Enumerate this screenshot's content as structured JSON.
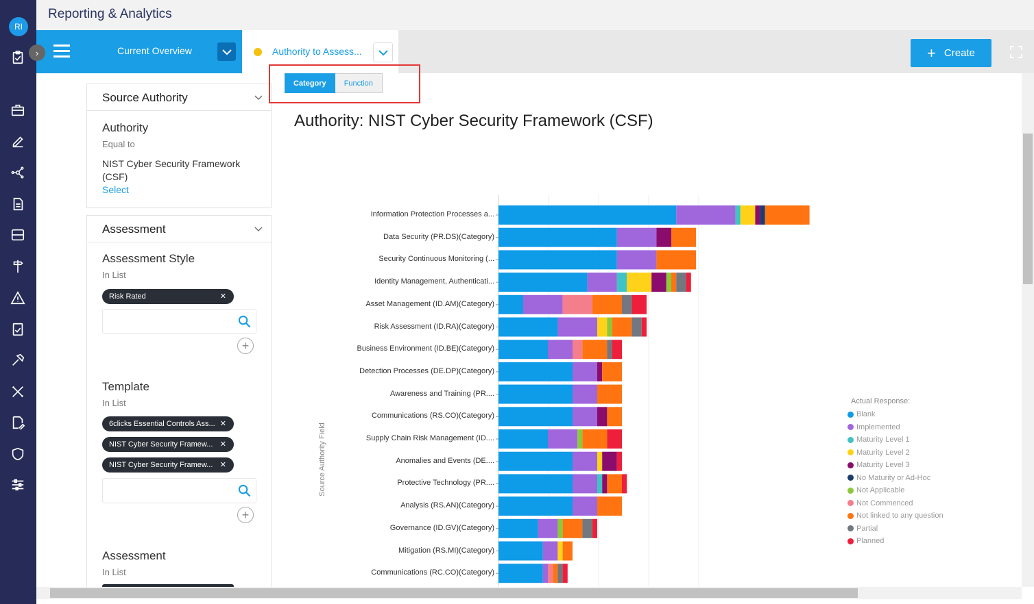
{
  "app": {
    "title": "Reporting & Analytics",
    "user_initials": "RI"
  },
  "tabs": {
    "active_label": "Current Overview",
    "second_label": "Authority to Assess..."
  },
  "toolbar": {
    "create_label": "Create"
  },
  "filters": {
    "source_authority": {
      "header": "Source Authority",
      "field": "Authority",
      "operator": "Equal to",
      "value": "NIST Cyber Security Framework (CSF)",
      "select_link": "Select"
    },
    "assessment_panel": {
      "header": "Assessment",
      "style": {
        "title": "Assessment Style",
        "operator": "In List",
        "chips": [
          "Risk Rated"
        ]
      },
      "template": {
        "title": "Template",
        "operator": "In List",
        "chips": [
          "6clicks Essential Controls Ass...",
          "NIST Cyber Security Framew...",
          "NIST Cyber Security Framew..."
        ]
      },
      "assessment": {
        "title": "Assessment",
        "operator": "In List"
      }
    }
  },
  "view_toggle": {
    "category": "Category",
    "function": "Function",
    "selected": "Category"
  },
  "chart_data": {
    "type": "bar",
    "orientation": "horizontal",
    "stacked": true,
    "title": "Authority: NIST Cyber Security Framework (CSF)",
    "ylabel": "Source Authority Field",
    "legend_title": "Actual Response:",
    "legend_position": "right",
    "categories": [
      "Information Protection Processes a...",
      "Data Security (PR.DS)(Category)",
      "Security Continuous Monitoring (...",
      "Identity Management, Authenticati...",
      "Asset Management (ID.AM)(Category)",
      "Risk Assessment (ID.RA)(Category)",
      "Business Environment (ID.BE)(Category)",
      "Detection Processes (DE.DP)(Category)",
      "Awareness and Training (PR....",
      "Communications (RS.CO)(Category)",
      "Supply Chain Risk Management (ID....",
      "Anomalies and Events (DE....",
      "Protective Technology (PR....",
      "Analysis (RS.AN)(Category)",
      "Governance (ID.GV)(Category)",
      "Mitigation (RS.MI)(Category)",
      "Communications (RC.CO)(Category)"
    ],
    "series": [
      {
        "name": "Blank",
        "color": "#0e9be8",
        "values": [
          36,
          24,
          24,
          18,
          5,
          12,
          10,
          15,
          15,
          15,
          10,
          15,
          15,
          15,
          8,
          9,
          9
        ]
      },
      {
        "name": "Implemented",
        "color": "#a066dc",
        "values": [
          12,
          8,
          8,
          6,
          8,
          8,
          5,
          5,
          5,
          5,
          6,
          5,
          5,
          5,
          4,
          3,
          1
        ]
      },
      {
        "name": "Maturity Level 1",
        "color": "#3fc3c4",
        "values": [
          1,
          0,
          0,
          2,
          0,
          0,
          0,
          0,
          0,
          0,
          0,
          0,
          1,
          0,
          0,
          0,
          0
        ]
      },
      {
        "name": "Maturity Level 2",
        "color": "#ffd21a",
        "values": [
          3,
          0,
          0,
          5,
          0,
          2,
          0,
          0,
          0,
          0,
          0,
          1,
          0,
          0,
          0,
          1,
          0
        ]
      },
      {
        "name": "Maturity Level 3",
        "color": "#8a0d6e",
        "values": [
          1,
          3,
          0,
          3,
          0,
          0,
          0,
          1,
          0,
          2,
          0,
          3,
          1,
          0,
          0,
          0,
          0
        ]
      },
      {
        "name": "No Maturity or Ad-Hoc",
        "color": "#1c3d6e",
        "values": [
          1,
          0,
          0,
          0,
          0,
          0,
          0,
          0,
          0,
          0,
          0,
          0,
          0,
          0,
          0,
          0,
          0
        ]
      },
      {
        "name": "Not Applicable",
        "color": "#8cc83c",
        "values": [
          0,
          0,
          0,
          1,
          0,
          1,
          0,
          0,
          0,
          0,
          1,
          0,
          0,
          0,
          1,
          0,
          0
        ]
      },
      {
        "name": "Not Commenced",
        "color": "#f47e8c",
        "values": [
          0,
          0,
          0,
          0,
          6,
          0,
          2,
          0,
          0,
          0,
          0,
          0,
          0,
          0,
          0,
          0,
          1
        ]
      },
      {
        "name": "Not linked to any question",
        "color": "#ff7410",
        "values": [
          9,
          5,
          8,
          1,
          6,
          4,
          5,
          4,
          5,
          3,
          5,
          0,
          3,
          5,
          4,
          2,
          1
        ]
      },
      {
        "name": "Partial",
        "color": "#727780",
        "values": [
          0,
          0,
          0,
          2,
          2,
          2,
          1,
          0,
          0,
          0,
          0,
          0,
          0,
          0,
          2,
          0,
          1
        ]
      },
      {
        "name": "Planned",
        "color": "#ee1f3b",
        "values": [
          0,
          0,
          0,
          1,
          3,
          1,
          2,
          0,
          0,
          0,
          3,
          1,
          1,
          0,
          1,
          0,
          1
        ]
      }
    ]
  }
}
